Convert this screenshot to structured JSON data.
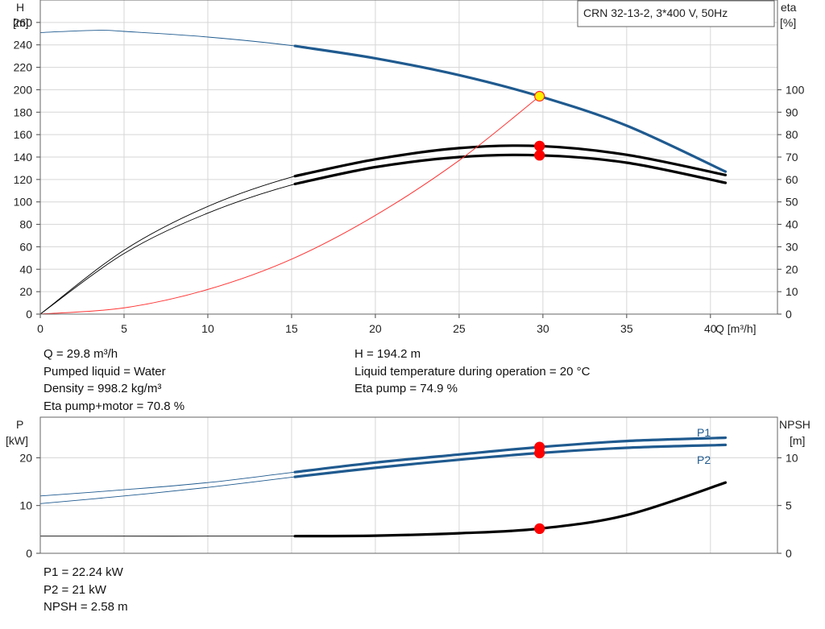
{
  "chart_data": [
    {
      "type": "line",
      "title": "CRN 32-13-2, 3*400 V, 50Hz",
      "xlabel": "Q [m³/h]",
      "ylabel": "H [m]",
      "y2label": "eta [%]",
      "xlim": [
        0,
        44
      ],
      "ylim": [
        0,
        280
      ],
      "y2lim": [
        0,
        140
      ],
      "grid": true,
      "x_ticks": [
        "0",
        "5",
        "10",
        "15",
        "20",
        "25",
        "30",
        "35",
        "40"
      ],
      "y_ticks": [
        "0",
        "20",
        "40",
        "60",
        "80",
        "100",
        "120",
        "140",
        "160",
        "180",
        "200",
        "220",
        "240",
        "260"
      ],
      "y2_ticks": [
        "0",
        "10",
        "20",
        "30",
        "40",
        "50",
        "60",
        "70",
        "80",
        "90",
        "100"
      ],
      "series": [
        {
          "axis": "left",
          "color": "#1f5a8f",
          "x": [
            0,
            3.5,
            5,
            10,
            15.2,
            20,
            25,
            29.8,
            35,
            40.9
          ],
          "values": [
            251,
            253,
            252,
            247,
            239,
            228,
            213,
            194.2,
            168,
            127
          ]
        },
        {
          "axis": "right",
          "color": "#000000",
          "x": [
            0,
            5,
            10,
            15.2,
            20,
            25,
            29.8,
            35,
            40.9
          ],
          "values": [
            0,
            28.5,
            48,
            61.5,
            69,
            74,
            74.9,
            71,
            62
          ]
        },
        {
          "axis": "right",
          "color": "#000000",
          "x": [
            0,
            5,
            10,
            15.2,
            20,
            25,
            29.8,
            35,
            40.9
          ],
          "values": [
            0,
            27,
            45,
            58,
            65.5,
            70,
            70.8,
            67.5,
            58.5
          ]
        },
        {
          "axis": "left",
          "color": "#ff4444",
          "x": [
            0,
            5,
            10,
            15,
            20,
            25,
            29.8
          ],
          "values": [
            0,
            5.5,
            22,
            49,
            88,
            137,
            194.2
          ]
        }
      ],
      "operating_points": [
        {
          "x": 29.8,
          "y": 194.2,
          "axis": "left",
          "fill": "#ffee00"
        },
        {
          "x": 29.8,
          "y": 74.9,
          "axis": "right",
          "fill": "#ff0000"
        },
        {
          "x": 29.8,
          "y": 70.8,
          "axis": "right",
          "fill": "#ff0000"
        }
      ]
    },
    {
      "type": "line",
      "xlabel": "",
      "ylabel": "P [kW]",
      "y2label": "NPSH [m]",
      "xlim": [
        0,
        44
      ],
      "ylim": [
        0,
        28.5
      ],
      "y2lim": [
        0,
        14.25
      ],
      "grid": true,
      "y_ticks": [
        "0",
        "10",
        "20"
      ],
      "y2_ticks": [
        "0",
        "5",
        "10"
      ],
      "series": [
        {
          "name": "P1",
          "axis": "left",
          "color": "#1f5a8f",
          "x": [
            0,
            5,
            10,
            15.2,
            20,
            25,
            29.8,
            35,
            40.9
          ],
          "values": [
            12,
            13.3,
            14.8,
            17,
            19,
            20.7,
            22.24,
            23.5,
            24.2
          ]
        },
        {
          "name": "P2",
          "axis": "left",
          "color": "#1f5a8f",
          "x": [
            0,
            5,
            10,
            15.2,
            20,
            25,
            29.8,
            35,
            40.9
          ],
          "values": [
            10.4,
            12,
            13.8,
            16,
            17.9,
            19.6,
            21,
            22.1,
            22.7
          ]
        },
        {
          "axis": "right",
          "color": "#000000",
          "x": [
            0,
            15.2,
            20,
            25,
            29.8,
            35,
            40.9
          ],
          "values": [
            1.8,
            1.8,
            1.85,
            2.1,
            2.58,
            4,
            7.4
          ]
        }
      ],
      "operating_points": [
        {
          "x": 29.8,
          "y": 22.24,
          "axis": "left",
          "fill": "#ff0000"
        },
        {
          "x": 29.8,
          "y": 21,
          "axis": "left",
          "fill": "#ff0000"
        },
        {
          "x": 29.8,
          "y": 2.58,
          "axis": "right",
          "fill": "#ff0000"
        }
      ]
    }
  ],
  "info_top_left": [
    "Q = 29.8 m³/h",
    "Pumped liquid = Water",
    "Density = 998.2 kg/m³",
    "Eta pump+motor = 70.8 %"
  ],
  "info_top_right": [
    "H = 194.2 m",
    "Liquid temperature during operation = 20 °C",
    "Eta pump = 74.9 %"
  ],
  "info_bottom": [
    "P1 = 22.24 kW",
    "P2 = 21 kW",
    "NPSH = 2.58 m"
  ]
}
